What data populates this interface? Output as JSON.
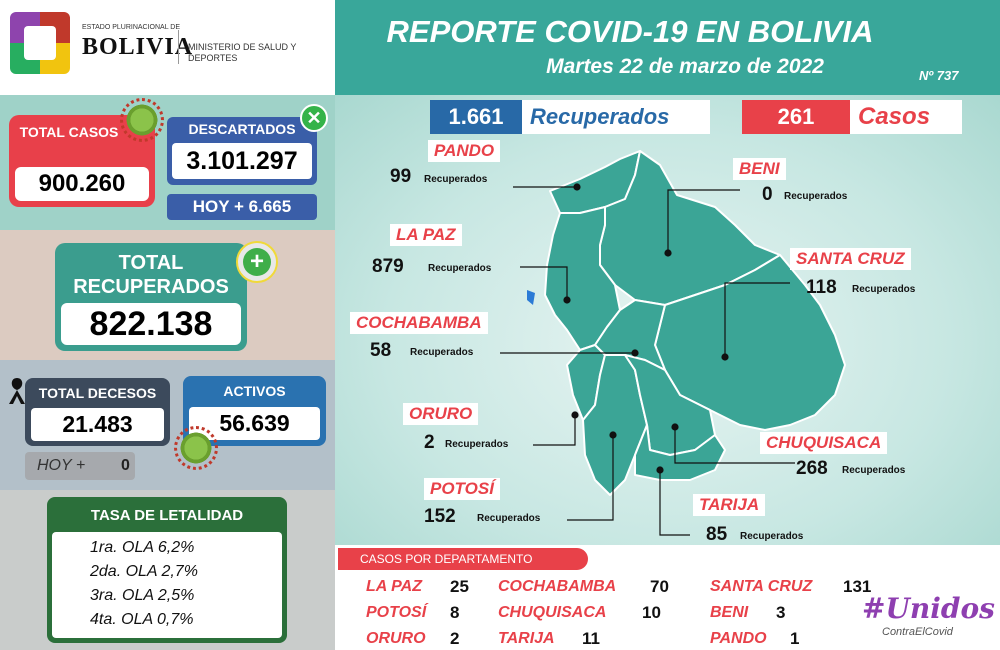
{
  "header": {
    "estado": "ESTADO PLURINACIONAL DE",
    "country": "BOLIVIA",
    "ministerio": "MINISTERIO DE SALUD Y DEPORTES",
    "title": "REPORTE COVID-19 EN BOLIVIA",
    "date": "Martes 22 de marzo de 2022",
    "report_number": "Nº 737"
  },
  "totals": {
    "total_casos_label": "TOTAL CASOS",
    "total_casos": "900.260",
    "descartados_label": "DESCARTADOS",
    "descartados": "3.101.297",
    "descartados_hoy": "HOY + 6.665",
    "recuperados_label": "TOTAL RECUPERADOS",
    "recuperados": "822.138",
    "decesos_label": "TOTAL DECESOS",
    "decesos": "21.483",
    "decesos_hoy_label": "HOY +",
    "decesos_hoy": "0",
    "activos_label": "ACTIVOS",
    "activos": "56.639"
  },
  "letalidad": {
    "title": "TASA DE LETALIDAD",
    "rows": [
      "1ra. OLA 6,2%",
      "2da. OLA 2,7%",
      "3ra. OLA 2,5%",
      "4ta. OLA 0,7%"
    ]
  },
  "daily": {
    "recuperados": "1.661",
    "recuperados_label": "Recuperados",
    "casos": "261",
    "casos_label": "Casos"
  },
  "recuperados_word": "Recuperados",
  "departments": [
    {
      "name": "PANDO",
      "value": "99"
    },
    {
      "name": "LA PAZ",
      "value": "879"
    },
    {
      "name": "COCHABAMBA",
      "value": "58"
    },
    {
      "name": "ORURO",
      "value": "2"
    },
    {
      "name": "POTOSÍ",
      "value": "152"
    },
    {
      "name": "BENI",
      "value": "0"
    },
    {
      "name": "SANTA CRUZ",
      "value": "118"
    },
    {
      "name": "CHUQUISACA",
      "value": "268"
    },
    {
      "name": "TARIJA",
      "value": "85"
    }
  ],
  "casos_por_departamento": {
    "title": "CASOS POR DEPARTAMENTO",
    "items": [
      {
        "name": "LA PAZ",
        "value": "25"
      },
      {
        "name": "POTOSÍ",
        "value": "8"
      },
      {
        "name": "ORURO",
        "value": "2"
      },
      {
        "name": "COCHABAMBA",
        "value": "70"
      },
      {
        "name": "CHUQUISACA",
        "value": "10"
      },
      {
        "name": "TARIJA",
        "value": "11"
      },
      {
        "name": "SANTA CRUZ",
        "value": "131"
      },
      {
        "name": "BENI",
        "value": "3"
      },
      {
        "name": "PANDO",
        "value": "1"
      }
    ]
  },
  "campaign": {
    "line1": "#Unidos",
    "line2": "ContraElCovid"
  },
  "colors": {
    "teal": "#39a79a",
    "red": "#e84149",
    "blue": "#2869a7",
    "map": "#3ba596"
  }
}
